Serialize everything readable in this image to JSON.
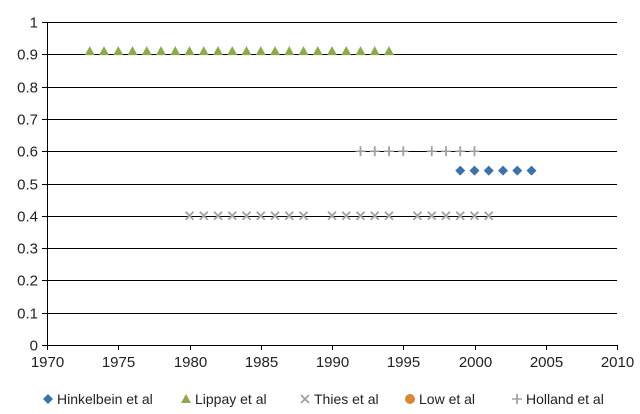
{
  "chart_data": {
    "type": "scatter",
    "title": "",
    "xlabel": "",
    "ylabel": "",
    "xlim": [
      1970,
      2010
    ],
    "ylim": [
      0,
      1
    ],
    "xticks": [
      1970,
      1975,
      1980,
      1985,
      1990,
      1995,
      2000,
      2005,
      2010
    ],
    "yticks": [
      0,
      0.1,
      0.2,
      0.3,
      0.4,
      0.5,
      0.6,
      0.7,
      0.8,
      0.9,
      1
    ],
    "ytick_labels": [
      "0",
      "0.1",
      "0.2",
      "0.3",
      "0.4",
      "0.5",
      "0.6",
      "0.7",
      "0.8",
      "0.9",
      "1"
    ],
    "grid": "horizontal",
    "legend_position": "bottom",
    "series": [
      {
        "name": "Hinkelbein et al",
        "marker": "diamond",
        "color": "#3d72a8",
        "x": [
          1999,
          2000,
          2001,
          2002,
          2003,
          2004
        ],
        "y": [
          0.54,
          0.54,
          0.54,
          0.54,
          0.54,
          0.54
        ]
      },
      {
        "name": "Lippay et al",
        "marker": "triangle",
        "color": "#8daa4a",
        "x": [
          1973,
          1974,
          1975,
          1976,
          1977,
          1978,
          1979,
          1980,
          1981,
          1982,
          1983,
          1984,
          1985,
          1986,
          1987,
          1988,
          1989,
          1990,
          1991,
          1992,
          1993,
          1994
        ],
        "y": [
          0.91,
          0.91,
          0.91,
          0.91,
          0.91,
          0.91,
          0.91,
          0.91,
          0.91,
          0.91,
          0.91,
          0.91,
          0.91,
          0.91,
          0.91,
          0.91,
          0.91,
          0.91,
          0.91,
          0.91,
          0.91,
          0.91
        ]
      },
      {
        "name": "Thies et al",
        "marker": "x",
        "color": "#a0a0a0",
        "x": [
          1980,
          1981,
          1982,
          1983,
          1984,
          1985,
          1986,
          1987,
          1988,
          1990,
          1991,
          1992,
          1993,
          1994,
          1996,
          1997,
          1998,
          1999,
          2000,
          2001
        ],
        "y": [
          0.4,
          0.4,
          0.4,
          0.4,
          0.4,
          0.4,
          0.4,
          0.4,
          0.4,
          0.4,
          0.4,
          0.4,
          0.4,
          0.4,
          0.4,
          0.4,
          0.4,
          0.4,
          0.4,
          0.4
        ]
      },
      {
        "name": "Low et al",
        "marker": "circle",
        "color": "#d9873a",
        "x": [],
        "y": []
      },
      {
        "name": "Holland et al",
        "marker": "plus",
        "color": "#a0a0a0",
        "x": [
          1992,
          1993,
          1994,
          1995,
          1997,
          1998,
          1999,
          2000
        ],
        "y": [
          0.6,
          0.6,
          0.6,
          0.6,
          0.6,
          0.6,
          0.6,
          0.6
        ]
      }
    ]
  }
}
